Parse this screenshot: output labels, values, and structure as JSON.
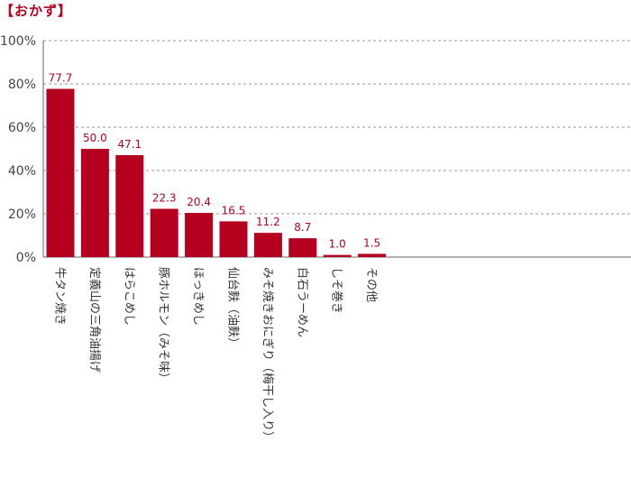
{
  "chart_data": {
    "type": "bar",
    "title": "【おかず】",
    "xlabel": "",
    "ylabel": "",
    "ylim": [
      0,
      100
    ],
    "ytick_labels": [
      "0%",
      "20%",
      "40%",
      "60%",
      "80%",
      "100%"
    ],
    "ytick_values": [
      0,
      20,
      40,
      60,
      80,
      100
    ],
    "grid": "horizontal dashed",
    "categories": [
      "牛タン焼き",
      "定義山の三角油揚げ",
      "はらこめし",
      "豚ホルモン（みそ味）",
      "ほっきめし",
      "仙台麩（油麩）",
      "みそ焼きおにぎり（梅干し入り）",
      "白石うーめん",
      "しそ巻き",
      "その他"
    ],
    "values": [
      77.7,
      50.0,
      47.1,
      22.3,
      20.4,
      16.5,
      11.2,
      8.7,
      1.0,
      1.5
    ],
    "value_labels": [
      "77.7",
      "50.0",
      "47.1",
      "22.3",
      "20.4",
      "16.5",
      "11.2",
      "8.7",
      "1.0",
      "1.5"
    ]
  },
  "colors": {
    "bar": "#b5001f",
    "title": "#b5001f",
    "grid": "#999999",
    "axis": "#666666"
  }
}
